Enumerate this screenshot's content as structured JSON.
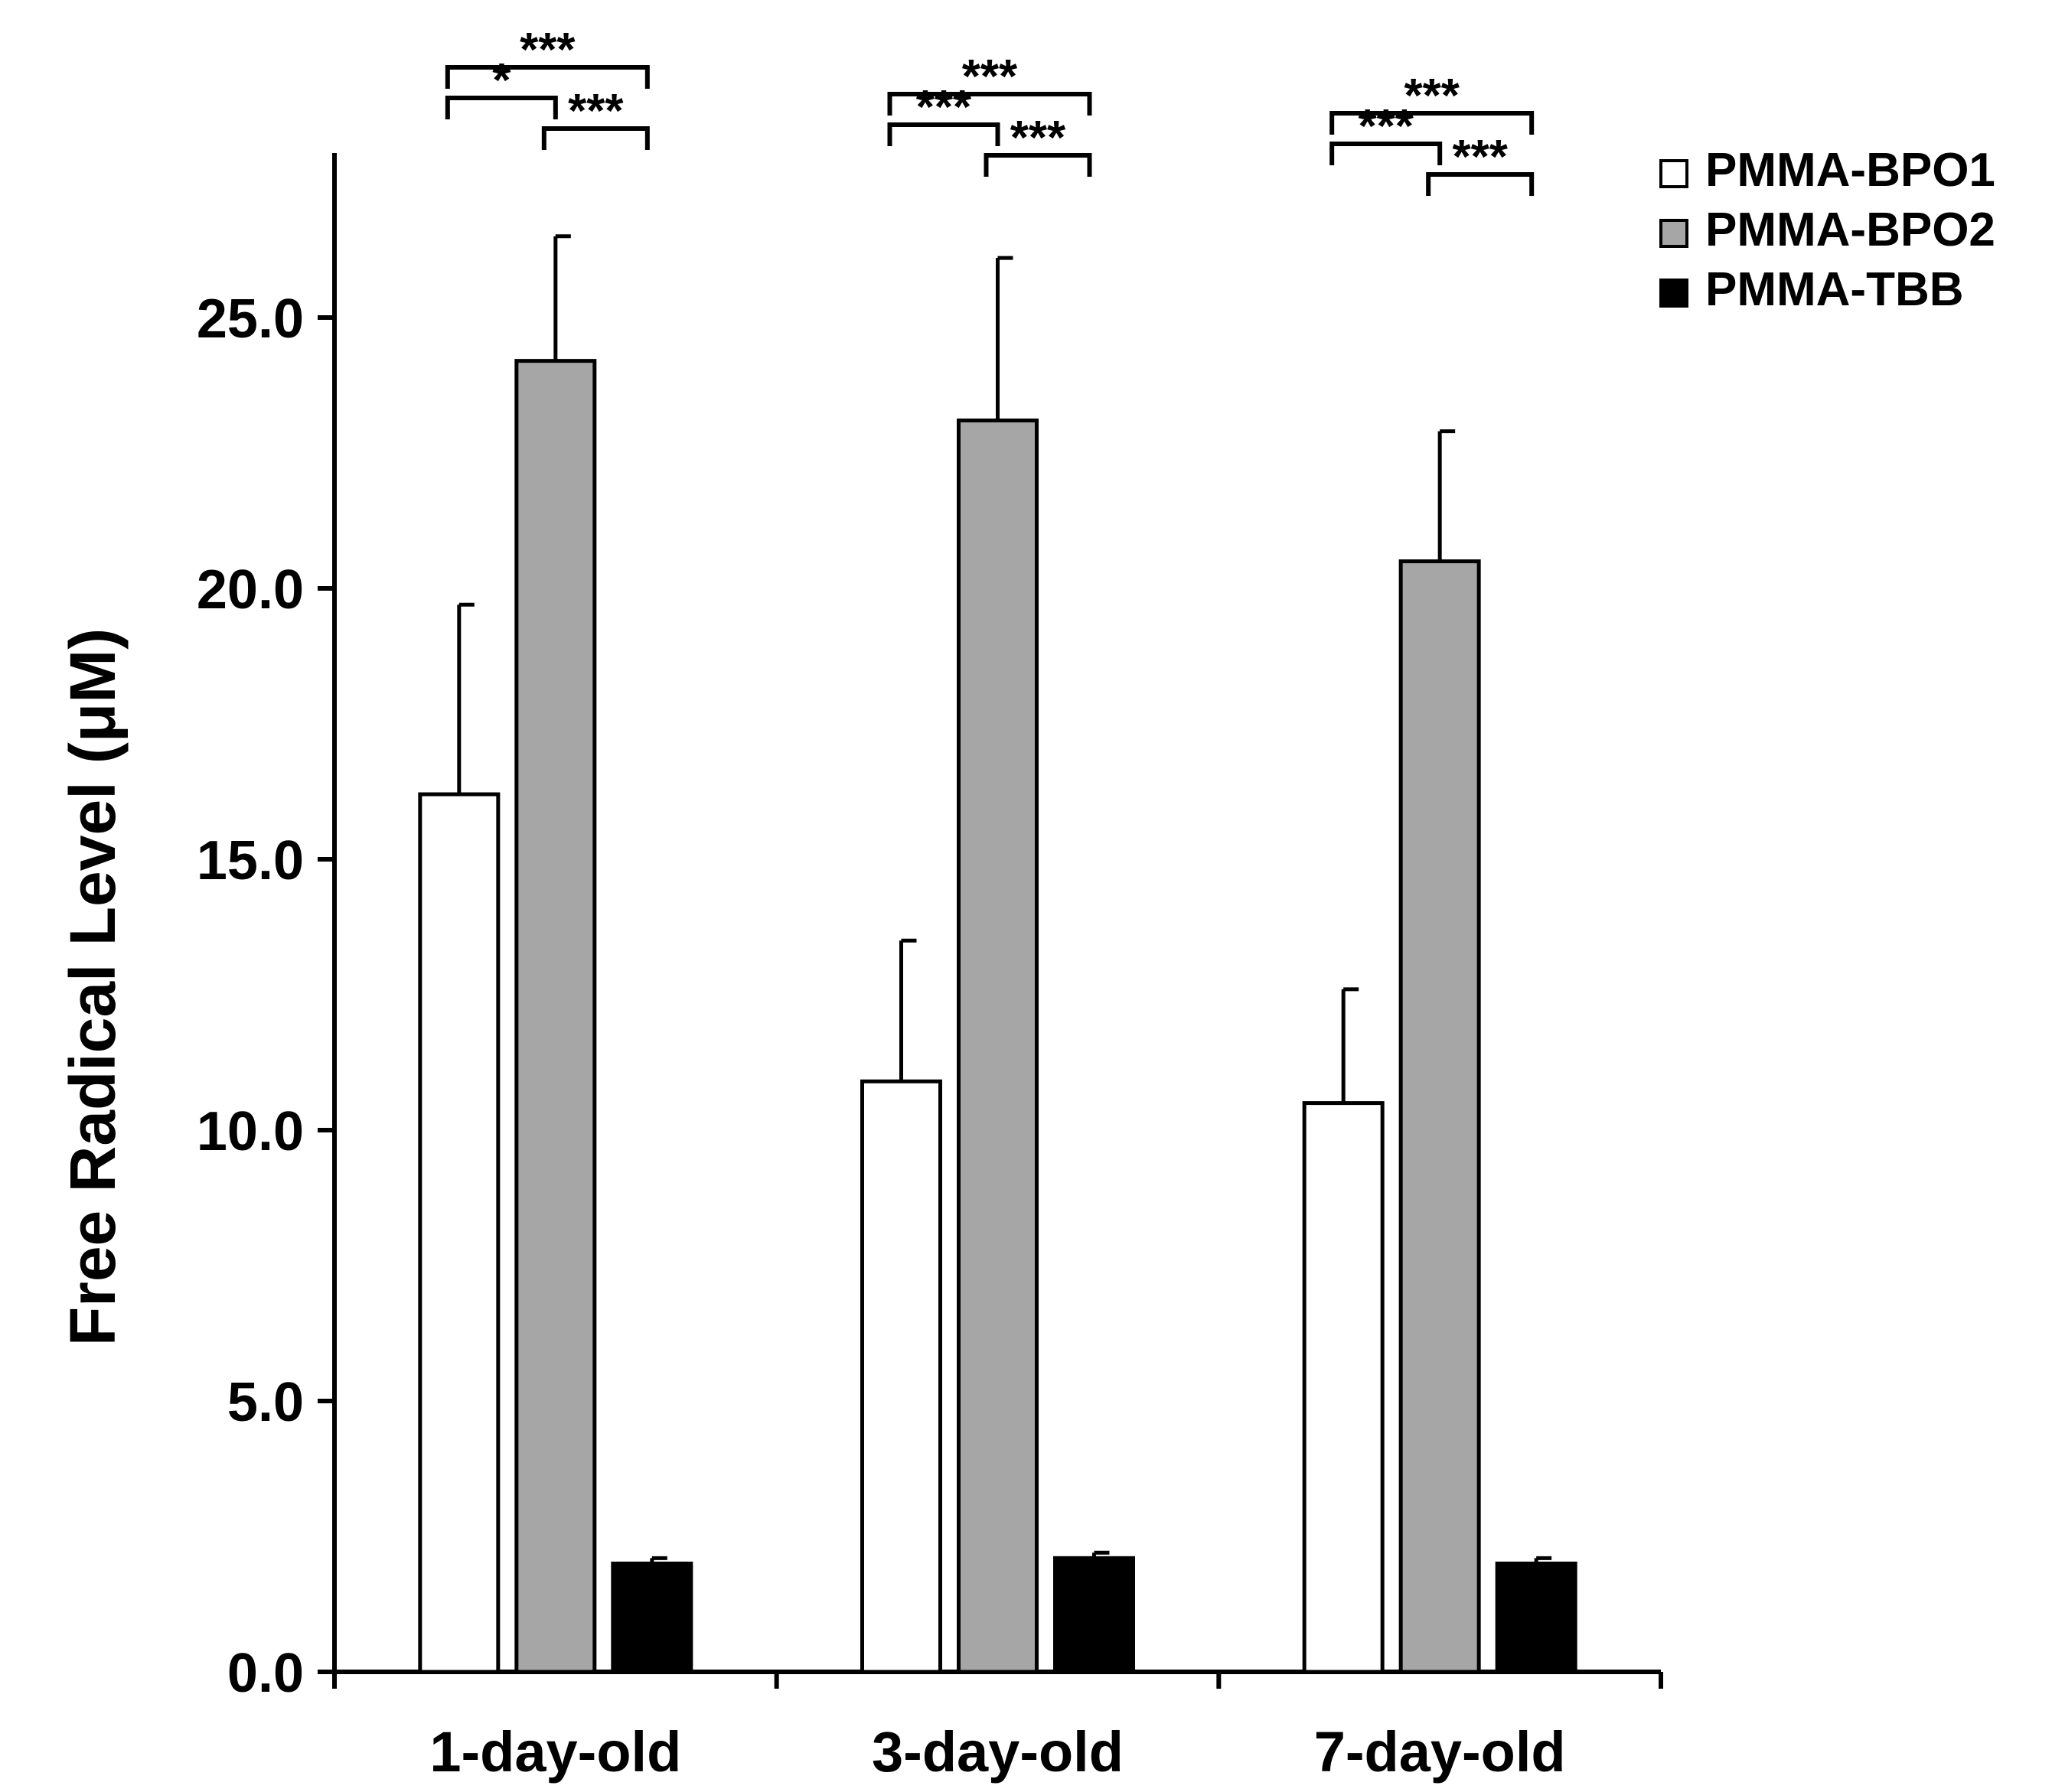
{
  "chart_data": {
    "type": "bar",
    "title": "",
    "xlabel": "",
    "ylabel": "Free Radical Level (μM)",
    "ylim": [
      0,
      28
    ],
    "yticks": [
      0,
      5,
      10,
      15,
      20,
      25
    ],
    "ytick_labels": [
      "0.0",
      "5.0",
      "10.0",
      "15.0",
      "20.0",
      "25.0"
    ],
    "grid": false,
    "legend_position": "top-right",
    "categories": [
      "1-day-old",
      "3-day-old",
      "7-day-old"
    ],
    "series": [
      {
        "name": "PMMA-BPO1",
        "color": "#ffffff",
        "values": [
          16.2,
          10.9,
          10.5
        ],
        "errors": [
          3.5,
          2.6,
          2.1
        ]
      },
      {
        "name": "PMMA-BPO2",
        "color": "#a6a6a6",
        "values": [
          24.2,
          23.1,
          20.5
        ],
        "errors": [
          2.3,
          3.0,
          2.4
        ]
      },
      {
        "name": "PMMA-TBB",
        "color": "#000000",
        "values": [
          2.0,
          2.1,
          2.0
        ],
        "errors": [
          0.1,
          0.1,
          0.1
        ]
      }
    ],
    "significance": [
      {
        "category": 0,
        "from": 0,
        "to": 2,
        "label": "***",
        "level": 3
      },
      {
        "category": 0,
        "from": 0,
        "to": 1,
        "label": "*",
        "level": 2
      },
      {
        "category": 0,
        "from": 1,
        "to": 2,
        "label": "***",
        "level": 1
      },
      {
        "category": 1,
        "from": 0,
        "to": 2,
        "label": "***",
        "level": 3
      },
      {
        "category": 1,
        "from": 0,
        "to": 1,
        "label": "***",
        "level": 2
      },
      {
        "category": 1,
        "from": 1,
        "to": 2,
        "label": "***",
        "level": 1
      },
      {
        "category": 2,
        "from": 0,
        "to": 2,
        "label": "***",
        "level": 3
      },
      {
        "category": 2,
        "from": 0,
        "to": 1,
        "label": "***",
        "level": 2
      },
      {
        "category": 2,
        "from": 1,
        "to": 2,
        "label": "***",
        "level": 1
      }
    ]
  }
}
